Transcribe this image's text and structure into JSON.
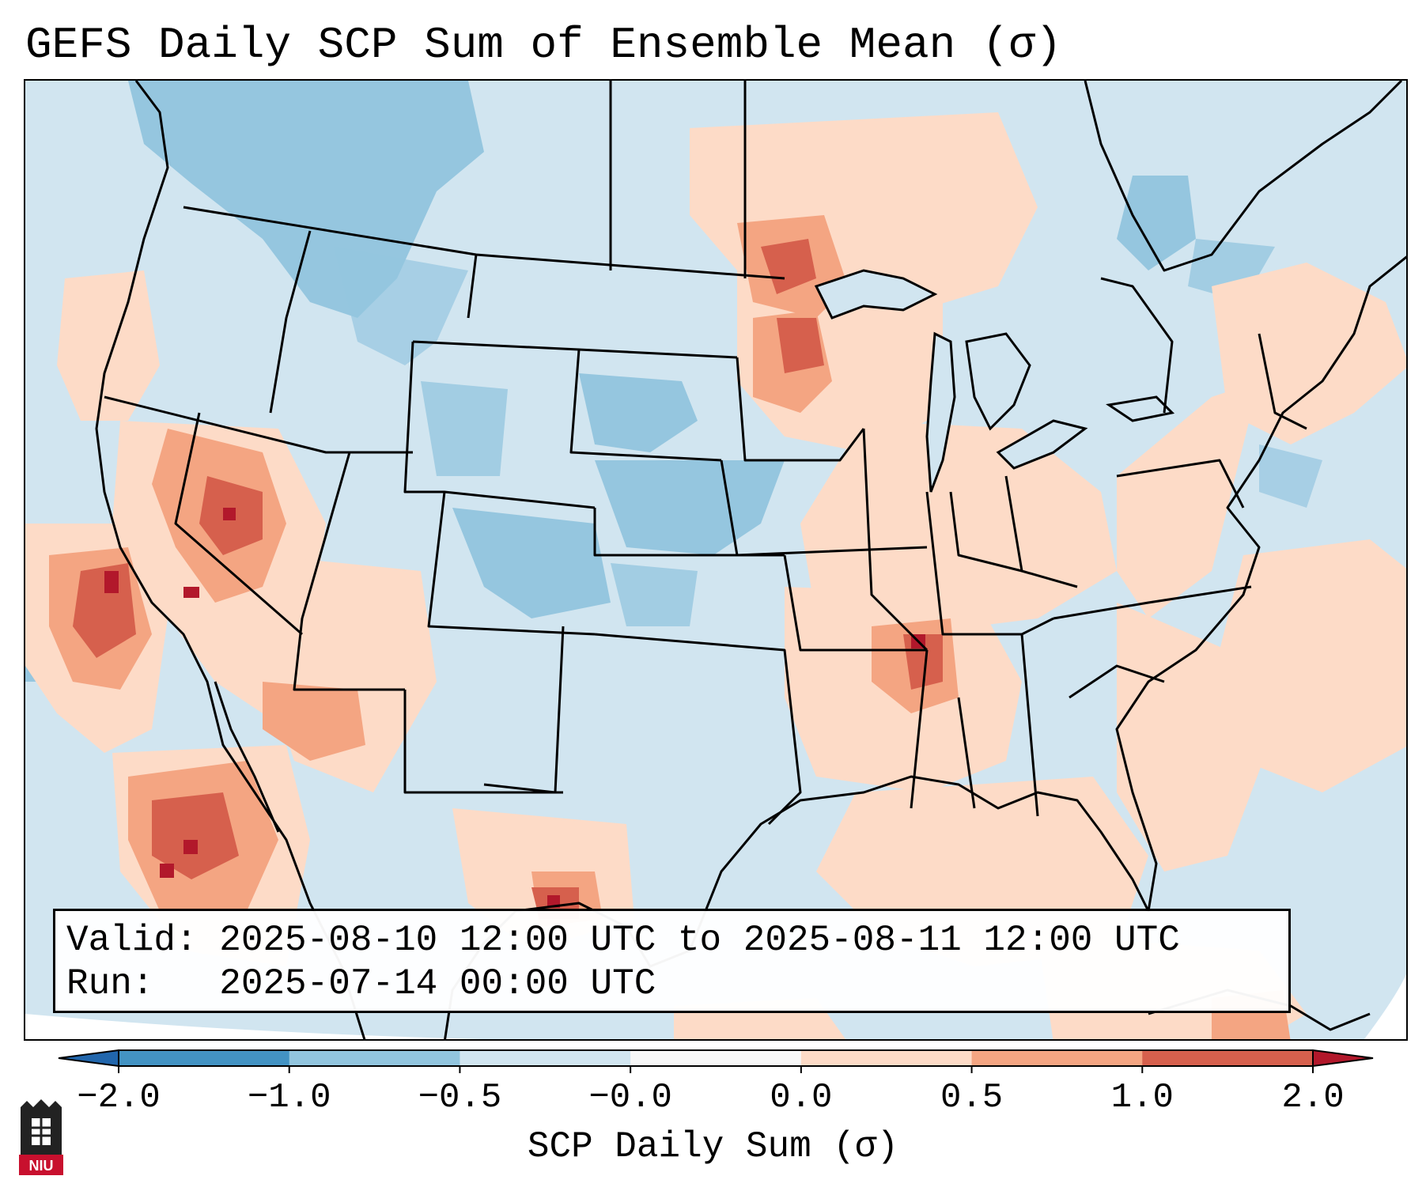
{
  "title": "GEFS Daily SCP Sum of Ensemble Mean (σ)",
  "info": {
    "valid_line": "Valid: 2025-08-10 12:00 UTC to 2025-08-11 12:00 UTC",
    "run_line": "Run:   2025-07-14 00:00 UTC"
  },
  "colorbar": {
    "label": "SCP Daily Sum (σ)",
    "ticks": [
      "−2.0",
      "−1.0",
      "−0.5",
      "−0.0",
      "0.0",
      "0.5",
      "1.0",
      "2.0"
    ],
    "colors": [
      "#4393c3",
      "#92c5de",
      "#d1e5f0",
      "#f7f7f7",
      "#fddbc7",
      "#f4a582",
      "#d6604d"
    ],
    "under_color": "#2166ac",
    "over_color": "#b2182b"
  },
  "logo": {
    "text": "NIU"
  },
  "palette": {
    "background": "#d1e5f0",
    "strong_neg": "#92c5de",
    "light_pos": "#fddbc7",
    "med_pos": "#f4a582",
    "strong_pos": "#d6604d",
    "extreme_pos": "#b2182b"
  }
}
